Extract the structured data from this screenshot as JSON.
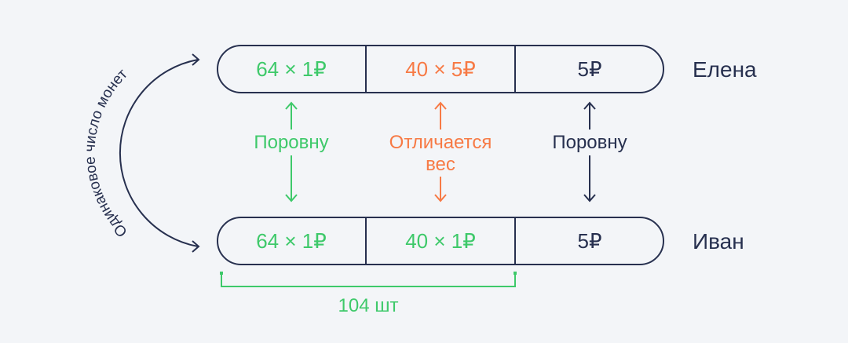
{
  "colors": {
    "equal": "#3ec96a",
    "different": "#f77a45",
    "neutral": "#27304f",
    "background": "#f3f5f8"
  },
  "arc_label": "Одинаковое число монет",
  "rows": [
    {
      "name": "Елена",
      "cells": [
        "64 × 1₽",
        "40 × 5₽",
        "5₽"
      ]
    },
    {
      "name": "Иван",
      "cells": [
        "64 × 1₽",
        "40 × 1₽",
        "5₽"
      ]
    }
  ],
  "comparisons": [
    {
      "line1": "Поровну",
      "line2": ""
    },
    {
      "line1": "Отличается",
      "line2": "вес"
    },
    {
      "line1": "Поровну",
      "line2": ""
    }
  ],
  "count_label": "104 шт"
}
